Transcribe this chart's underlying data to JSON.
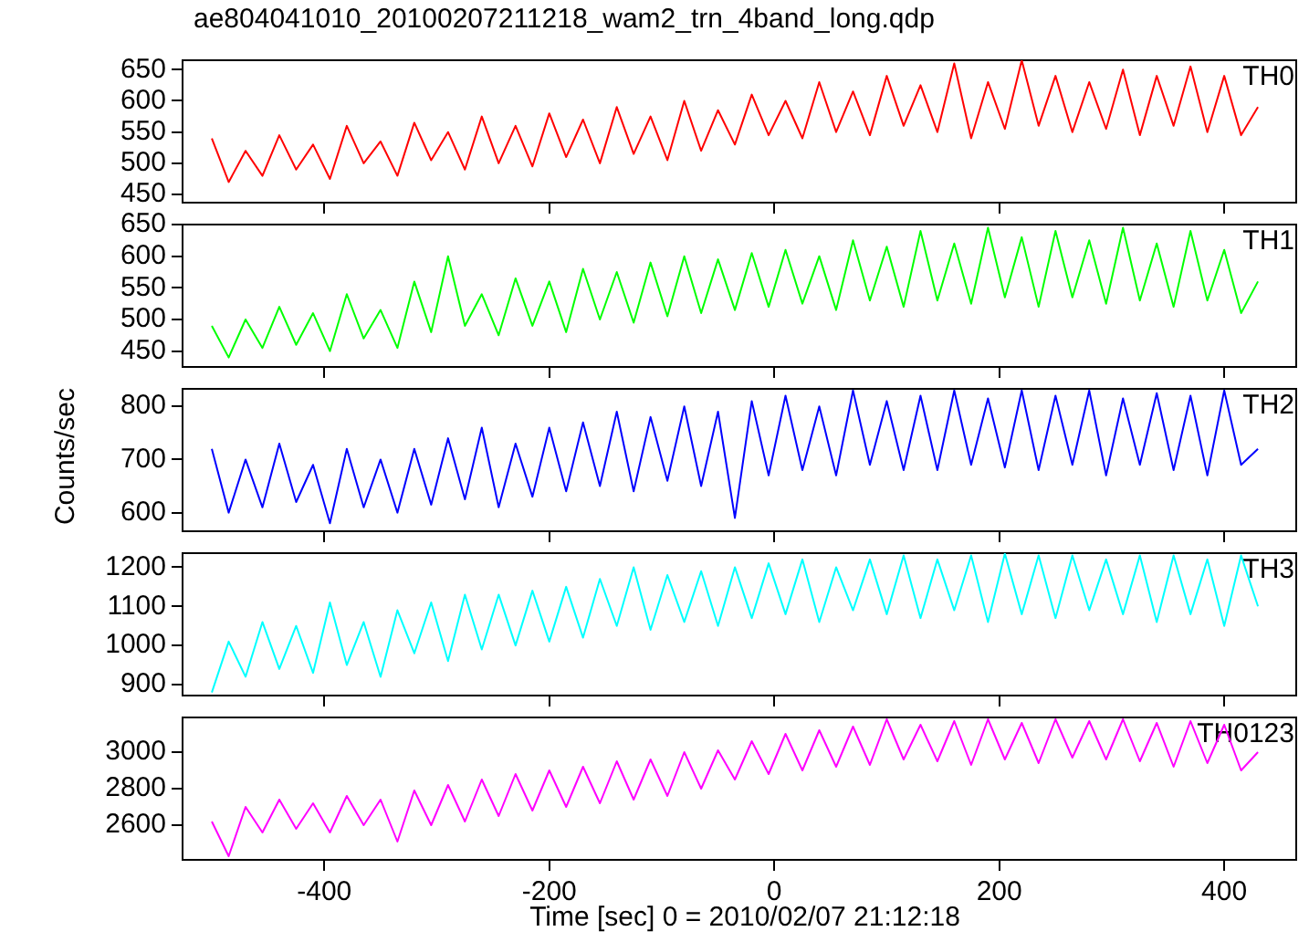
{
  "chart_data": [
    {
      "type": "line",
      "title": "ae804041010_20100207211218_wam2_trn_4band_long.qdp",
      "x": [
        -500,
        -485,
        -470,
        -455,
        -440,
        -425,
        -410,
        -395,
        -380,
        -365,
        -350,
        -335,
        -320,
        -305,
        -290,
        -275,
        -260,
        -245,
        -230,
        -215,
        -200,
        -185,
        -170,
        -155,
        -140,
        -125,
        -110,
        -95,
        -80,
        -65,
        -50,
        -35,
        -20,
        -5,
        10,
        25,
        40,
        55,
        70,
        85,
        100,
        115,
        130,
        145,
        160,
        175,
        190,
        205,
        220,
        235,
        250,
        265,
        280,
        295,
        310,
        325,
        340,
        355,
        370,
        385,
        400,
        415,
        430
      ],
      "xlim": [
        -526,
        464
      ],
      "xticks": [
        -400,
        -200,
        0,
        200,
        400
      ],
      "ylim": [
        437,
        665
      ],
      "yticks": [
        450,
        500,
        550,
        600,
        650
      ],
      "tick_labels": "y",
      "grid": false,
      "legend": false,
      "annotations": [
        "TH0"
      ],
      "series": [
        {
          "color": "#ff0000",
          "values": [
            540,
            470,
            520,
            480,
            545,
            490,
            530,
            475,
            560,
            500,
            535,
            480,
            565,
            505,
            550,
            490,
            575,
            500,
            560,
            495,
            580,
            510,
            570,
            500,
            590,
            515,
            575,
            505,
            600,
            520,
            585,
            530,
            610,
            545,
            600,
            540,
            630,
            550,
            615,
            545,
            640,
            560,
            625,
            550,
            660,
            540,
            630,
            555,
            665,
            560,
            640,
            550,
            630,
            555,
            650,
            545,
            640,
            560,
            655,
            550,
            640,
            545,
            590
          ]
        }
      ]
    },
    {
      "type": "line",
      "x": [
        -500,
        -485,
        -470,
        -455,
        -440,
        -425,
        -410,
        -395,
        -380,
        -365,
        -350,
        -335,
        -320,
        -305,
        -290,
        -275,
        -260,
        -245,
        -230,
        -215,
        -200,
        -185,
        -170,
        -155,
        -140,
        -125,
        -110,
        -95,
        -80,
        -65,
        -50,
        -35,
        -20,
        -5,
        10,
        25,
        40,
        55,
        70,
        85,
        100,
        115,
        130,
        145,
        160,
        175,
        190,
        205,
        220,
        235,
        250,
        265,
        280,
        295,
        310,
        325,
        340,
        355,
        370,
        385,
        400,
        415,
        430
      ],
      "xlim": [
        -526,
        464
      ],
      "xticks": [
        -400,
        -200,
        0,
        200,
        400
      ],
      "ylim": [
        425,
        650
      ],
      "yticks": [
        450,
        500,
        550,
        600,
        650
      ],
      "tick_labels": "y",
      "grid": false,
      "legend": false,
      "annotations": [
        "TH1"
      ],
      "series": [
        {
          "color": "#00ff00",
          "values": [
            490,
            440,
            500,
            455,
            520,
            460,
            510,
            450,
            540,
            470,
            515,
            455,
            560,
            480,
            600,
            490,
            540,
            475,
            565,
            490,
            560,
            480,
            580,
            500,
            575,
            495,
            590,
            505,
            600,
            510,
            595,
            515,
            605,
            520,
            610,
            525,
            600,
            515,
            625,
            530,
            615,
            520,
            640,
            530,
            620,
            525,
            645,
            535,
            630,
            520,
            640,
            535,
            625,
            525,
            645,
            530,
            620,
            520,
            640,
            530,
            610,
            510,
            560
          ]
        }
      ]
    },
    {
      "type": "line",
      "ylabel": "Counts/sec",
      "x": [
        -500,
        -485,
        -470,
        -455,
        -440,
        -425,
        -410,
        -395,
        -380,
        -365,
        -350,
        -335,
        -320,
        -305,
        -290,
        -275,
        -260,
        -245,
        -230,
        -215,
        -200,
        -185,
        -170,
        -155,
        -140,
        -125,
        -110,
        -95,
        -80,
        -65,
        -50,
        -35,
        -20,
        -5,
        10,
        25,
        40,
        55,
        70,
        85,
        100,
        115,
        130,
        145,
        160,
        175,
        190,
        205,
        220,
        235,
        250,
        265,
        280,
        295,
        310,
        325,
        340,
        355,
        370,
        385,
        400,
        415,
        430
      ],
      "xlim": [
        -526,
        464
      ],
      "xticks": [
        -400,
        -200,
        0,
        200,
        400
      ],
      "ylim": [
        565,
        833
      ],
      "yticks": [
        600,
        700,
        800
      ],
      "tick_labels": "y",
      "grid": false,
      "legend": false,
      "annotations": [
        "TH2"
      ],
      "series": [
        {
          "color": "#0000ff",
          "values": [
            720,
            600,
            700,
            610,
            730,
            620,
            690,
            580,
            720,
            610,
            700,
            600,
            720,
            615,
            740,
            625,
            760,
            610,
            730,
            630,
            760,
            640,
            770,
            650,
            790,
            640,
            780,
            660,
            800,
            650,
            790,
            590,
            810,
            670,
            820,
            680,
            800,
            670,
            830,
            690,
            810,
            680,
            820,
            680,
            830,
            690,
            815,
            685,
            830,
            680,
            820,
            690,
            830,
            670,
            815,
            690,
            825,
            680,
            820,
            670,
            830,
            690,
            720
          ]
        }
      ]
    },
    {
      "type": "line",
      "x": [
        -500,
        -485,
        -470,
        -455,
        -440,
        -425,
        -410,
        -395,
        -380,
        -365,
        -350,
        -335,
        -320,
        -305,
        -290,
        -275,
        -260,
        -245,
        -230,
        -215,
        -200,
        -185,
        -170,
        -155,
        -140,
        -125,
        -110,
        -95,
        -80,
        -65,
        -50,
        -35,
        -20,
        -5,
        10,
        25,
        40,
        55,
        70,
        85,
        100,
        115,
        130,
        145,
        160,
        175,
        190,
        205,
        220,
        235,
        250,
        265,
        280,
        295,
        310,
        325,
        340,
        355,
        370,
        385,
        400,
        415,
        430
      ],
      "xlim": [
        -526,
        464
      ],
      "xticks": [
        -400,
        -200,
        0,
        200,
        400
      ],
      "ylim": [
        872,
        1236
      ],
      "yticks": [
        900,
        1000,
        1100,
        1200
      ],
      "tick_labels": "y",
      "grid": false,
      "legend": false,
      "annotations": [
        "TH3"
      ],
      "series": [
        {
          "color": "#00ffff",
          "values": [
            880,
            1010,
            920,
            1060,
            940,
            1050,
            930,
            1110,
            950,
            1060,
            920,
            1090,
            980,
            1110,
            960,
            1130,
            990,
            1130,
            1000,
            1140,
            1010,
            1150,
            1020,
            1170,
            1050,
            1200,
            1040,
            1180,
            1060,
            1190,
            1050,
            1200,
            1070,
            1210,
            1080,
            1220,
            1060,
            1200,
            1090,
            1220,
            1080,
            1230,
            1070,
            1220,
            1090,
            1230,
            1060,
            1235,
            1080,
            1230,
            1070,
            1230,
            1090,
            1220,
            1080,
            1230,
            1060,
            1230,
            1080,
            1220,
            1050,
            1230,
            1100
          ]
        }
      ]
    },
    {
      "type": "line",
      "xlabel": "Time [sec] 0 = 2010/02/07 21:12:18",
      "x": [
        -500,
        -485,
        -470,
        -455,
        -440,
        -425,
        -410,
        -395,
        -380,
        -365,
        -350,
        -335,
        -320,
        -305,
        -290,
        -275,
        -260,
        -245,
        -230,
        -215,
        -200,
        -185,
        -170,
        -155,
        -140,
        -125,
        -110,
        -95,
        -80,
        -65,
        -50,
        -35,
        -20,
        -5,
        10,
        25,
        40,
        55,
        70,
        85,
        100,
        115,
        130,
        145,
        160,
        175,
        190,
        205,
        220,
        235,
        250,
        265,
        280,
        295,
        310,
        325,
        340,
        355,
        370,
        385,
        400,
        415,
        430
      ],
      "xlim": [
        -526,
        464
      ],
      "xticks": [
        -400,
        -200,
        0,
        200,
        400
      ],
      "ylim": [
        2410,
        3190
      ],
      "yticks": [
        2600,
        2800,
        3000
      ],
      "grid": false,
      "legend": false,
      "annotations": [
        "TH0123"
      ],
      "series": [
        {
          "color": "#ff00ff",
          "values": [
            2620,
            2430,
            2700,
            2560,
            2740,
            2580,
            2720,
            2560,
            2760,
            2600,
            2740,
            2510,
            2790,
            2600,
            2820,
            2620,
            2850,
            2650,
            2880,
            2680,
            2900,
            2700,
            2920,
            2720,
            2950,
            2740,
            2960,
            2760,
            3000,
            2800,
            3010,
            2850,
            3060,
            2880,
            3100,
            2900,
            3120,
            2920,
            3140,
            2930,
            3180,
            2960,
            3150,
            2950,
            3170,
            2930,
            3180,
            2960,
            3160,
            2940,
            3180,
            2970,
            3170,
            2960,
            3180,
            2950,
            3160,
            2920,
            3170,
            2940,
            3150,
            2900,
            3000
          ]
        }
      ]
    }
  ]
}
